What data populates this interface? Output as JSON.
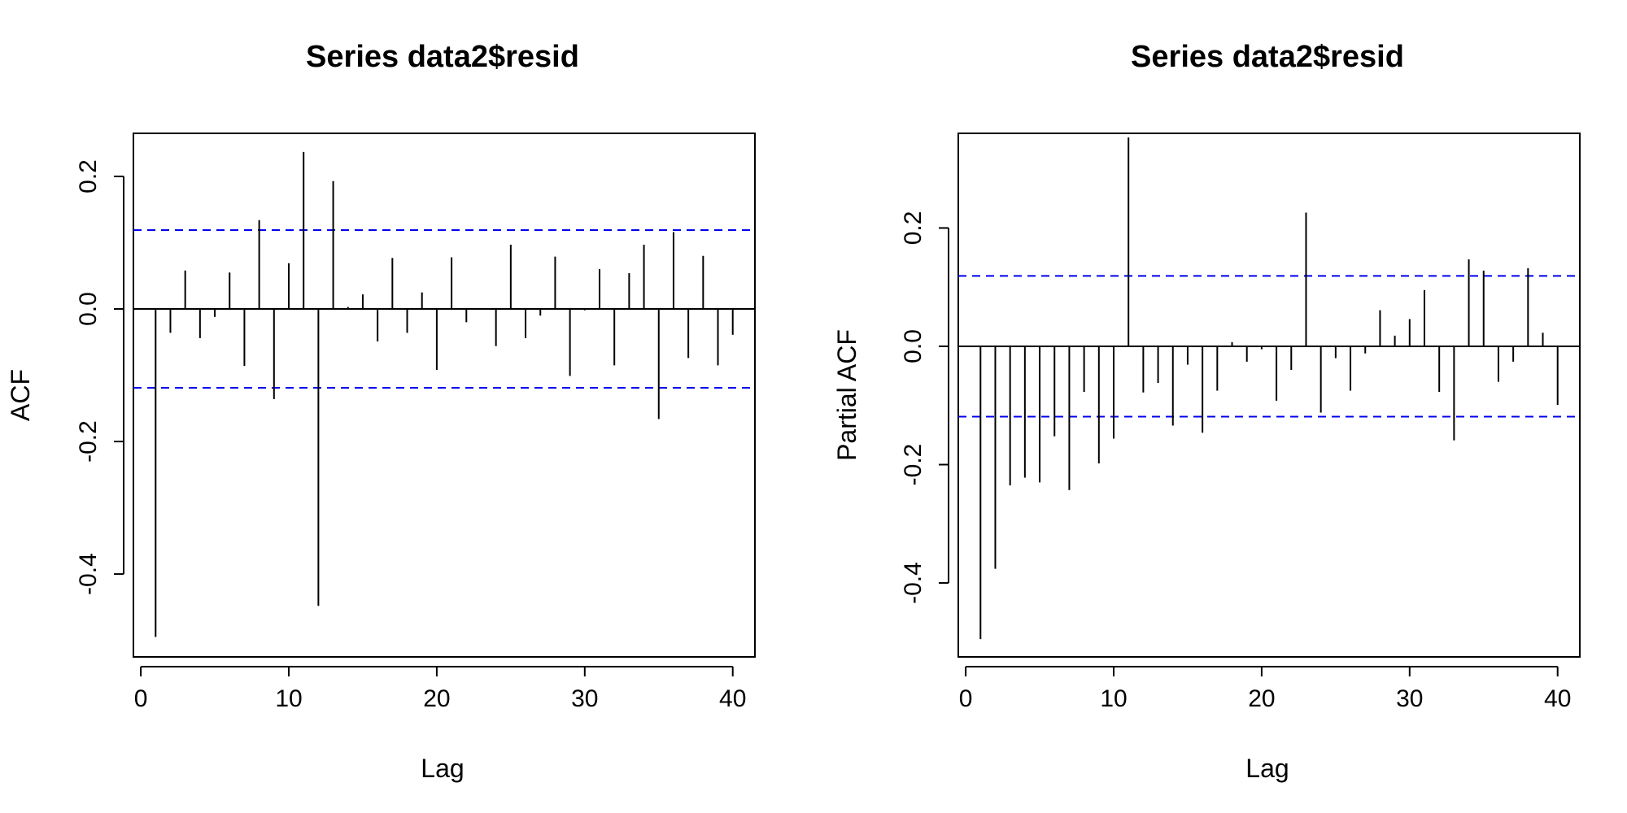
{
  "chart_data": [
    {
      "type": "bar",
      "title": "Series  data2$resid",
      "xlabel": "Lag",
      "ylabel": "ACF",
      "xlim": [
        -0.5,
        41.5
      ],
      "ylim": [
        -0.525,
        0.265
      ],
      "x_ticks": [
        {
          "value": 0,
          "label": "0"
        },
        {
          "value": 10,
          "label": "10"
        },
        {
          "value": 20,
          "label": "20"
        },
        {
          "value": 30,
          "label": "30"
        },
        {
          "value": 40,
          "label": "40"
        }
      ],
      "y_ticks": [
        {
          "value": -0.4,
          "label": "-0.4"
        },
        {
          "value": -0.2,
          "label": "-0.2"
        },
        {
          "value": 0.0,
          "label": "0.0"
        },
        {
          "value": 0.2,
          "label": "0.2"
        }
      ],
      "confidence_limit": 0.119,
      "confidence_color": "#0000EE",
      "lags": [
        1,
        2,
        3,
        4,
        5,
        6,
        7,
        8,
        9,
        10,
        11,
        12,
        13,
        14,
        15,
        16,
        17,
        18,
        19,
        20,
        21,
        22,
        23,
        24,
        25,
        26,
        27,
        28,
        29,
        30,
        31,
        32,
        33,
        34,
        35,
        36,
        37,
        38,
        39,
        40
      ],
      "values": [
        -0.495,
        -0.036,
        0.058,
        -0.044,
        -0.012,
        0.055,
        -0.086,
        0.134,
        -0.136,
        0.069,
        0.237,
        -0.448,
        0.193,
        0.003,
        0.022,
        -0.049,
        0.077,
        -0.036,
        0.025,
        -0.092,
        0.078,
        -0.02,
        0.0,
        -0.056,
        0.097,
        -0.044,
        -0.01,
        0.079,
        -0.101,
        -0.002,
        0.06,
        -0.085,
        0.054,
        0.097,
        -0.166,
        0.116,
        -0.074,
        0.08,
        -0.085,
        -0.039
      ]
    },
    {
      "type": "bar",
      "title": "Series  data2$resid",
      "xlabel": "Lag",
      "ylabel": "Partial ACF",
      "xlim": [
        -0.5,
        41.5
      ],
      "ylim": [
        -0.525,
        0.36
      ],
      "x_ticks": [
        {
          "value": 0,
          "label": "0"
        },
        {
          "value": 10,
          "label": "10"
        },
        {
          "value": 20,
          "label": "20"
        },
        {
          "value": 30,
          "label": "30"
        },
        {
          "value": 40,
          "label": "40"
        }
      ],
      "y_ticks": [
        {
          "value": -0.4,
          "label": "-0.4"
        },
        {
          "value": -0.2,
          "label": "-0.2"
        },
        {
          "value": 0.0,
          "label": "0.0"
        },
        {
          "value": 0.2,
          "label": "0.2"
        }
      ],
      "confidence_limit": 0.119,
      "confidence_color": "#0000EE",
      "lags": [
        1,
        2,
        3,
        4,
        5,
        6,
        7,
        8,
        9,
        10,
        11,
        12,
        13,
        14,
        15,
        16,
        17,
        18,
        19,
        20,
        21,
        22,
        23,
        24,
        25,
        26,
        27,
        28,
        29,
        30,
        31,
        32,
        33,
        34,
        35,
        36,
        37,
        38,
        39,
        40
      ],
      "values": [
        -0.495,
        -0.376,
        -0.235,
        -0.222,
        -0.23,
        -0.152,
        -0.243,
        -0.077,
        -0.198,
        -0.156,
        0.353,
        -0.078,
        -0.062,
        -0.134,
        -0.031,
        -0.146,
        -0.075,
        0.007,
        -0.026,
        -0.005,
        -0.092,
        -0.04,
        0.226,
        -0.112,
        -0.02,
        -0.075,
        -0.012,
        0.061,
        0.018,
        0.046,
        0.095,
        -0.077,
        -0.159,
        0.147,
        0.128,
        -0.06,
        -0.026,
        0.132,
        0.023,
        -0.099
      ]
    }
  ]
}
